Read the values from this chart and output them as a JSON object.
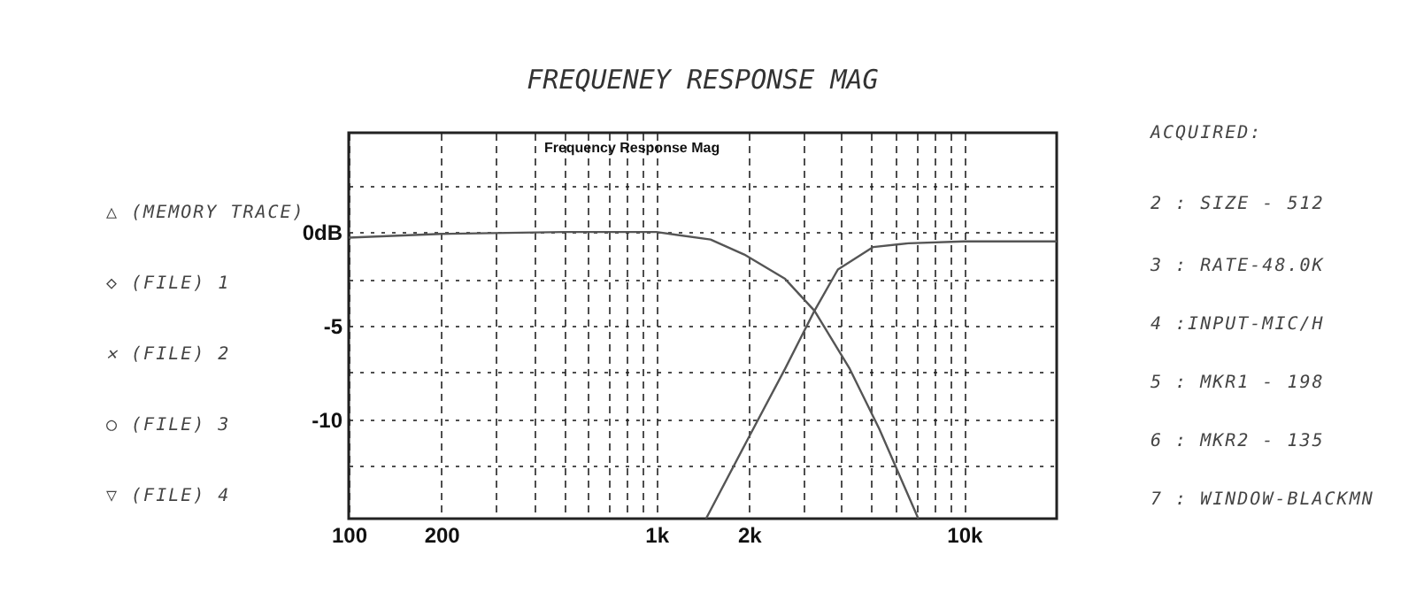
{
  "chart_data": {
    "type": "line",
    "title": "FREQUENEY RESPONSE MAG",
    "subtitle": "Frequency Response Mag",
    "annotations": [
      "△ (MEMORY TRACE)",
      "◇ (FILE) 1",
      "✕ (FILE) 2",
      "○ (FILE) 3",
      "▽ (FILE) 4",
      "ACQUIRED:",
      "2 :  SIZE - 512",
      "3 :  RATE-48.0K",
      "4 :INPUT-MIC/H",
      "5 : MKR1 - 198",
      "6 : MKR2 - 135",
      "7 : WINDOW-BLACKMN"
    ],
    "series": [
      {
        "color": "#555555",
        "x": [
          100,
          200,
          500,
          1000,
          1500,
          1930,
          2620,
          3265,
          4250,
          5300,
          6890,
          7100
        ],
        "values": [
          -0.3,
          -0.1,
          0,
          0,
          -0.4,
          -1.2,
          -2.5,
          -4.2,
          -7.3,
          -10.5,
          -14.8,
          -15.3
        ]
      },
      {
        "color": "#555555",
        "x": [
          1450,
          2020,
          2620,
          3265,
          3890,
          5070,
          6600,
          10000,
          20000
        ],
        "values": [
          -15.3,
          -10.8,
          -7.3,
          -4.2,
          -2,
          -0.8,
          -0.6,
          -0.5,
          -0.5
        ]
      }
    ],
    "log": "x",
    "xlim": [
      100,
      20000
    ],
    "xticks": [
      100,
      200,
      {
        "value": 300,
        "label": null
      },
      {
        "value": 400,
        "label": null
      },
      {
        "value": 500,
        "label": null
      },
      {
        "value": 600,
        "label": null
      },
      {
        "value": 700,
        "label": null
      },
      {
        "value": 800,
        "label": null
      },
      {
        "value": 900,
        "label": null
      },
      {
        "value": 1000,
        "label": "1k"
      },
      {
        "value": 2000,
        "label": "2k"
      },
      {
        "value": 3000,
        "label": null
      },
      {
        "value": 4000,
        "label": null
      },
      {
        "value": 5000,
        "label": null
      },
      {
        "value": 6000,
        "label": null
      },
      {
        "value": 7000,
        "label": null
      },
      {
        "value": 8000,
        "label": null
      },
      {
        "value": 9000,
        "label": null
      },
      {
        "value": 10000,
        "label": "10k"
      }
    ],
    "ylim": [
      -15.3,
      5.3
    ],
    "yticks": [
      {
        "value": -12.5,
        "label": null
      },
      -10,
      {
        "value": -7.5,
        "label": null
      },
      -5,
      {
        "value": -2.5,
        "label": null
      },
      {
        "value": 0,
        "label": "0dB"
      },
      {
        "value": 2.5,
        "label": null
      }
    ],
    "grid": true,
    "legend": false
  }
}
